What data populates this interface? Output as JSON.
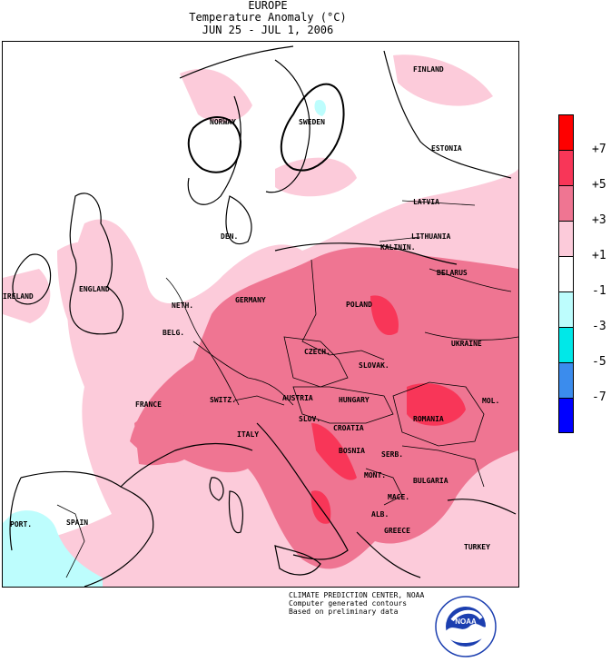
{
  "header": {
    "region": "EUROPE",
    "subtitle": "Temperature Anomaly (°C)",
    "period": "JUN 25 - JUL 1, 2006"
  },
  "legend": {
    "colors": [
      "#fe0000",
      "#f83658",
      "#ef7592",
      "#fccbda",
      "#ffffff",
      "#bdfdfd",
      "#00e8e8",
      "#3b8ced",
      "#0000ff"
    ],
    "ticks": [
      "+7",
      "+5",
      "+3",
      "+1",
      "-1",
      "-3",
      "-5",
      "-7"
    ]
  },
  "countries": {
    "finland": "FINLAND",
    "norway": "NORWAY",
    "sweden": "SWEDEN",
    "estonia": "ESTONIA",
    "latvia": "LATVIA",
    "lithuania": "LITHUANIA",
    "kaliningrad": "KALININ.",
    "den": "DEN.",
    "belarus": "BELARUS",
    "ireland": "IRELAND",
    "england": "ENGLAND",
    "neth": "NETH.",
    "germany": "GERMANY",
    "poland": "POLAND",
    "belg": "BELG.",
    "czech": "CZECH.",
    "ukraine": "UKRAINE",
    "slovak": "SLOVAK.",
    "france": "FRANCE",
    "switz": "SWITZ.",
    "austria": "AUSTRIA",
    "hungary": "HUNGARY",
    "mol": "MOL.",
    "romania": "ROMANIA",
    "slov": "SLOV.",
    "croatia": "CROATIA",
    "italy": "ITALY",
    "bosnia": "BOSNIA",
    "serb": "SERB.",
    "mont": "MONT.",
    "bulgaria": "BULGARIA",
    "mace": "MACE.",
    "alb": "ALB.",
    "greece": "GREECE",
    "turkey": "TURKEY",
    "port": "PORT.",
    "spain": "SPAIN"
  },
  "credits": {
    "line1": "CLIMATE PREDICTION CENTER, NOAA",
    "line2": "Computer generated contours",
    "line3": "Based on preliminary data",
    "logo_text": "NOAA"
  }
}
